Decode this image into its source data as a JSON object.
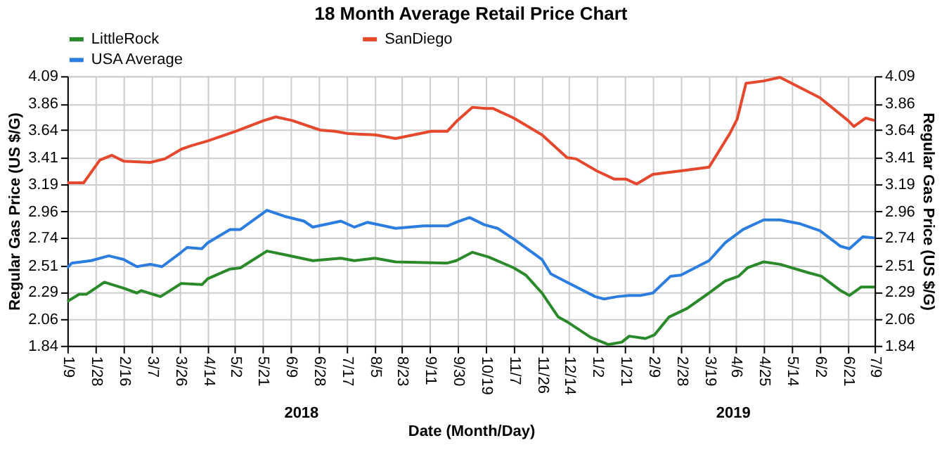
{
  "chart_data": {
    "type": "line",
    "title": "18 Month Average Retail Price Chart",
    "xlabel": "Date (Month/Day)",
    "ylabel": "Regular Gas Price (US $/G)",
    "y2label": "Regular Gas Price (US $/G)",
    "annotations": [
      "2018",
      "2019"
    ],
    "series": [
      {
        "name": "LittleRock",
        "color": "#2a8a2a",
        "x": [
          "2018-01-09",
          "2018-01-17",
          "2018-01-22",
          "2018-02-03",
          "2018-02-16",
          "2018-02-25",
          "2018-02-28",
          "2018-03-13",
          "2018-03-27",
          "2018-04-10",
          "2018-04-14",
          "2018-04-29",
          "2018-05-06",
          "2018-05-24",
          "2018-06-05",
          "2018-06-24",
          "2018-07-13",
          "2018-07-22",
          "2018-08-05",
          "2018-08-19",
          "2018-09-23",
          "2018-09-29",
          "2018-10-10",
          "2018-10-21",
          "2018-11-07",
          "2018-11-15",
          "2018-11-26",
          "2018-12-07",
          "2018-12-13",
          "2018-12-29",
          "2019-01-10",
          "2019-01-19",
          "2019-01-24",
          "2019-02-04",
          "2019-02-10",
          "2019-02-20",
          "2019-03-04",
          "2019-03-19",
          "2019-03-30",
          "2019-04-08",
          "2019-04-14",
          "2019-04-25",
          "2019-05-06",
          "2019-05-25",
          "2019-06-03",
          "2019-06-16",
          "2019-06-22",
          "2019-06-30",
          "2019-07-09"
        ],
        "values": [
          2.21,
          2.27,
          2.27,
          2.37,
          2.32,
          2.28,
          2.3,
          2.25,
          2.36,
          2.35,
          2.4,
          2.48,
          2.49,
          2.63,
          2.6,
          2.55,
          2.57,
          2.55,
          2.57,
          2.54,
          2.53,
          2.55,
          2.62,
          2.58,
          2.49,
          2.43,
          2.28,
          2.08,
          2.04,
          1.91,
          1.85,
          1.87,
          1.92,
          1.9,
          1.93,
          2.08,
          2.15,
          2.28,
          2.38,
          2.42,
          2.49,
          2.54,
          2.52,
          2.45,
          2.42,
          2.3,
          2.26,
          2.33,
          2.33
        ]
      },
      {
        "name": "SanDiego",
        "color": "#e5482d",
        "x": [
          "2018-01-09",
          "2018-01-20",
          "2018-01-31",
          "2018-02-08",
          "2018-02-16",
          "2018-03-06",
          "2018-03-16",
          "2018-03-27",
          "2018-04-03",
          "2018-04-14",
          "2018-05-03",
          "2018-05-22",
          "2018-05-30",
          "2018-06-10",
          "2018-06-29",
          "2018-07-09",
          "2018-07-18",
          "2018-08-05",
          "2018-08-19",
          "2018-09-12",
          "2018-09-23",
          "2018-09-29",
          "2018-10-10",
          "2018-10-19",
          "2018-10-24",
          "2018-11-07",
          "2018-11-26",
          "2018-12-13",
          "2018-12-19",
          "2019-01-02",
          "2019-01-14",
          "2019-01-22",
          "2019-01-29",
          "2019-02-09",
          "2019-02-28",
          "2019-03-19",
          "2019-04-02",
          "2019-04-07",
          "2019-04-13",
          "2019-04-25",
          "2019-05-06",
          "2019-06-02",
          "2019-06-21",
          "2019-06-25",
          "2019-07-03",
          "2019-07-09"
        ],
        "values": [
          3.2,
          3.2,
          3.39,
          3.43,
          3.38,
          3.37,
          3.4,
          3.48,
          3.51,
          3.55,
          3.63,
          3.72,
          3.75,
          3.72,
          3.64,
          3.63,
          3.61,
          3.6,
          3.57,
          3.63,
          3.63,
          3.71,
          3.83,
          3.82,
          3.82,
          3.74,
          3.6,
          3.41,
          3.4,
          3.3,
          3.23,
          3.23,
          3.19,
          3.27,
          3.3,
          3.33,
          3.61,
          3.73,
          4.03,
          4.05,
          4.08,
          3.91,
          3.72,
          3.67,
          3.74,
          3.72
        ]
      },
      {
        "name": "USA Average",
        "color": "#2b7de0",
        "x": [
          "2018-01-09",
          "2018-01-12",
          "2018-01-25",
          "2018-02-06",
          "2018-02-16",
          "2018-02-25",
          "2018-03-06",
          "2018-03-14",
          "2018-03-27",
          "2018-03-31",
          "2018-04-10",
          "2018-04-14",
          "2018-04-29",
          "2018-05-06",
          "2018-05-24",
          "2018-06-05",
          "2018-06-18",
          "2018-06-24",
          "2018-07-13",
          "2018-07-22",
          "2018-07-31",
          "2018-08-19",
          "2018-09-07",
          "2018-09-23",
          "2018-09-29",
          "2018-10-08",
          "2018-10-18",
          "2018-10-27",
          "2018-11-07",
          "2018-11-26",
          "2018-12-02",
          "2018-12-13",
          "2019-01-01",
          "2019-01-07",
          "2019-01-16",
          "2019-01-24",
          "2019-02-01",
          "2019-02-09",
          "2019-02-21",
          "2019-02-28",
          "2019-03-19",
          "2019-03-30",
          "2019-04-11",
          "2019-04-25",
          "2019-05-06",
          "2019-05-19",
          "2019-06-02",
          "2019-06-16",
          "2019-06-22",
          "2019-07-01",
          "2019-07-09"
        ],
        "values": [
          2.49,
          2.53,
          2.55,
          2.59,
          2.56,
          2.5,
          2.52,
          2.5,
          2.62,
          2.66,
          2.65,
          2.7,
          2.81,
          2.81,
          2.97,
          2.92,
          2.88,
          2.83,
          2.88,
          2.83,
          2.87,
          2.82,
          2.84,
          2.84,
          2.87,
          2.91,
          2.85,
          2.82,
          2.73,
          2.56,
          2.44,
          2.37,
          2.25,
          2.23,
          2.25,
          2.26,
          2.26,
          2.28,
          2.42,
          2.43,
          2.55,
          2.7,
          2.81,
          2.89,
          2.89,
          2.86,
          2.8,
          2.67,
          2.65,
          2.75,
          2.74
        ]
      }
    ],
    "xlim": [
      "2018-01-09",
      "2019-07-09"
    ],
    "xticks": [
      {
        "value": "2018-01-09",
        "label": "1/9"
      },
      {
        "value": "2018-01-28",
        "label": "1/28"
      },
      {
        "value": "2018-02-16",
        "label": "2/16"
      },
      {
        "value": "2018-03-07",
        "label": "3/7"
      },
      {
        "value": "2018-03-26",
        "label": "3/26"
      },
      {
        "value": "2018-04-14",
        "label": "4/14"
      },
      {
        "value": "2018-05-02",
        "label": "5/2"
      },
      {
        "value": "2018-05-21",
        "label": "5/21"
      },
      {
        "value": "2018-06-09",
        "label": "6/9"
      },
      {
        "value": "2018-06-28",
        "label": "6/28"
      },
      {
        "value": "2018-07-17",
        "label": "7/17"
      },
      {
        "value": "2018-08-05",
        "label": "8/5"
      },
      {
        "value": "2018-08-23",
        "label": "8/23"
      },
      {
        "value": "2018-09-11",
        "label": "9/11"
      },
      {
        "value": "2018-09-30",
        "label": "9/30"
      },
      {
        "value": "2018-10-19",
        "label": "10/19"
      },
      {
        "value": "2018-11-07",
        "label": "11/7"
      },
      {
        "value": "2018-11-26",
        "label": "11/26"
      },
      {
        "value": "2018-12-14",
        "label": "12/14"
      },
      {
        "value": "2019-01-02",
        "label": "1/2"
      },
      {
        "value": "2019-01-21",
        "label": "1/21"
      },
      {
        "value": "2019-02-09",
        "label": "2/9"
      },
      {
        "value": "2019-02-28",
        "label": "2/28"
      },
      {
        "value": "2019-03-19",
        "label": "3/19"
      },
      {
        "value": "2019-04-06",
        "label": "4/6"
      },
      {
        "value": "2019-04-25",
        "label": "4/25"
      },
      {
        "value": "2019-05-14",
        "label": "5/14"
      },
      {
        "value": "2019-06-02",
        "label": "6/2"
      },
      {
        "value": "2019-06-21",
        "label": "6/21"
      },
      {
        "value": "2019-07-09",
        "label": "7/9"
      }
    ],
    "ylim": [
      1.84,
      4.09
    ],
    "yticks": [
      1.84,
      2.06,
      2.29,
      2.51,
      2.74,
      2.96,
      3.19,
      3.41,
      3.64,
      3.86,
      4.09
    ],
    "y2lim": [
      1.84,
      4.09
    ],
    "y2ticks": [
      1.84,
      2.06,
      2.29,
      2.51,
      2.74,
      2.96,
      3.19,
      3.41,
      3.64,
      3.86,
      4.09
    ],
    "grid": true,
    "legend": "top",
    "marker": "none",
    "line_style": "solid"
  }
}
